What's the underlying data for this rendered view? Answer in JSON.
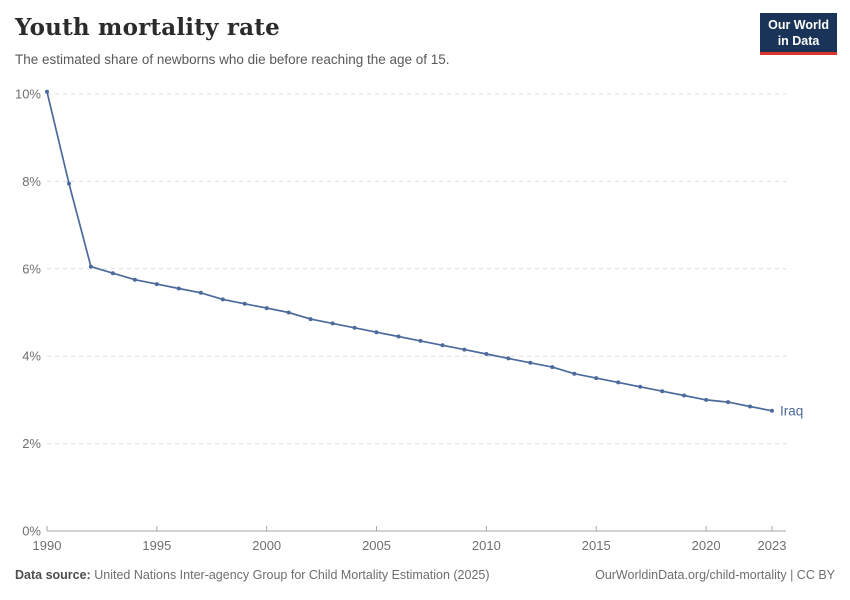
{
  "header": {
    "title": "Youth mortality rate",
    "subtitle": "The estimated share of newborns who die before reaching the age of 15."
  },
  "logo": {
    "line1": "Our World",
    "line2": "in Data",
    "bg_color": "#1a3358",
    "accent_color": "#dc352b"
  },
  "footer": {
    "source_label": "Data source:",
    "source_text": "United Nations Inter-agency Group for Child Mortality Estimation (2025)",
    "url": "OurWorldinData.org/child-mortality",
    "separator": " | ",
    "license": "CC BY"
  },
  "chart_data": {
    "type": "line",
    "title": "Youth mortality rate",
    "subtitle": "The estimated share of newborns who die before reaching the age of 15.",
    "unit": "%",
    "x": [
      1990,
      1991,
      1992,
      1993,
      1994,
      1995,
      1996,
      1997,
      1998,
      1999,
      2000,
      2001,
      2002,
      2003,
      2004,
      2005,
      2006,
      2007,
      2008,
      2009,
      2010,
      2011,
      2012,
      2013,
      2014,
      2015,
      2016,
      2017,
      2018,
      2019,
      2020,
      2021,
      2022,
      2023
    ],
    "series": [
      {
        "name": "Iraq",
        "color": "#4c6a9c",
        "values": [
          10.05,
          7.95,
          6.05,
          5.9,
          5.75,
          5.65,
          5.55,
          5.45,
          5.3,
          5.2,
          5.1,
          5.0,
          4.85,
          4.75,
          4.65,
          4.55,
          4.45,
          4.35,
          4.25,
          4.15,
          4.05,
          3.95,
          3.85,
          3.75,
          3.6,
          3.5,
          3.4,
          3.3,
          3.2,
          3.1,
          3.0,
          2.95,
          2.85,
          2.75
        ]
      }
    ],
    "xlim": [
      1990,
      2023
    ],
    "ylim": [
      0,
      10
    ],
    "xticks": [
      1990,
      1995,
      2000,
      2005,
      2010,
      2015,
      2020,
      2023
    ],
    "yticks": [
      0,
      2,
      4,
      6,
      8,
      10
    ],
    "ytick_labels": [
      "0%",
      "2%",
      "4%",
      "6%",
      "8%",
      "10%"
    ],
    "grid": "horizontal-dashed",
    "legend": "entity-label-at-line-end",
    "entity_label": "Iraq"
  }
}
